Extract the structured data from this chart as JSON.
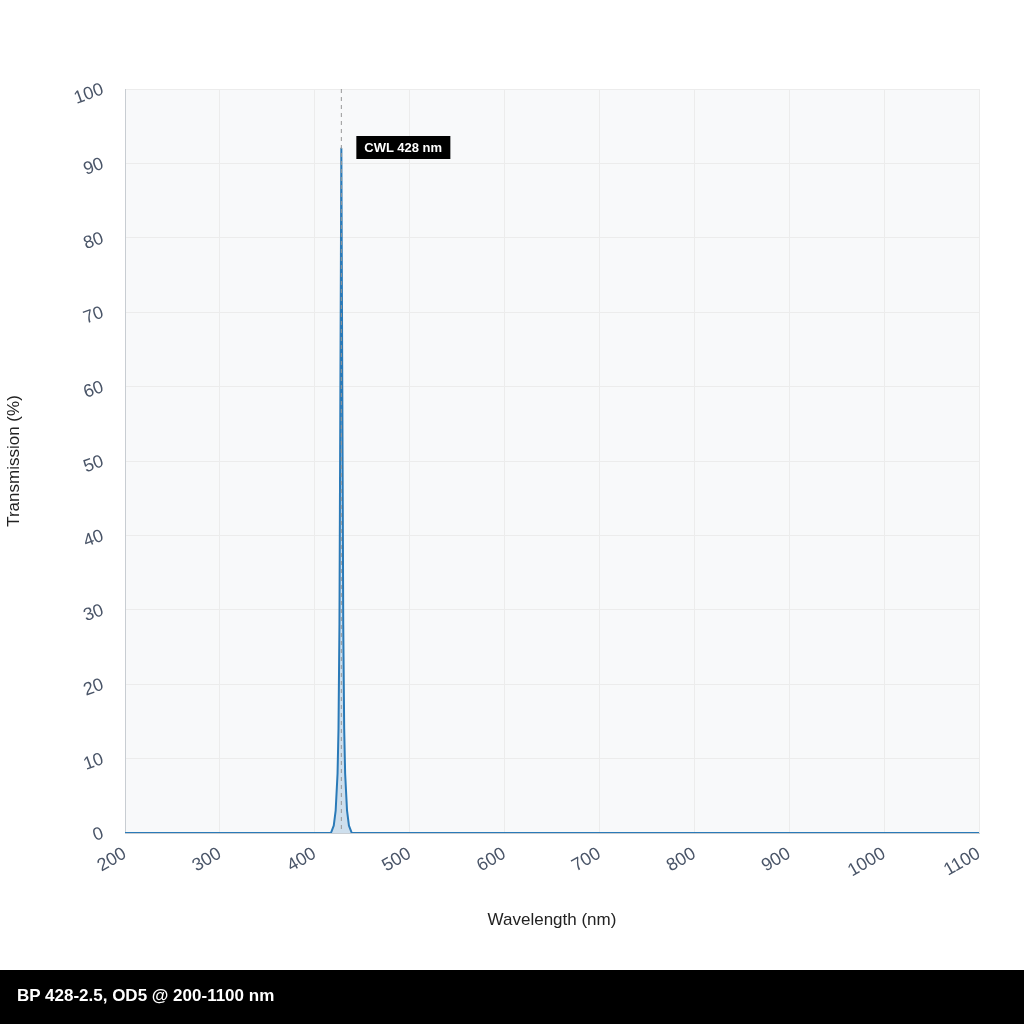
{
  "chart_data": {
    "type": "area",
    "xlabel": "Wavelength (nm)",
    "ylabel": "Transmission (%)",
    "x": [
      200,
      417,
      420,
      422,
      424,
      425,
      426,
      427,
      428,
      429,
      430,
      431,
      432,
      434,
      436,
      439,
      1100
    ],
    "series": [
      {
        "color": "#2a7ab8",
        "values": [
          0,
          0,
          1,
          3,
          8,
          14,
          28,
          60,
          92,
          60,
          28,
          14,
          8,
          3,
          1,
          0,
          0
        ]
      }
    ],
    "xlim": [
      200,
      1100
    ],
    "xticks": [
      200,
      300,
      400,
      500,
      600,
      700,
      800,
      900,
      1000,
      1100
    ],
    "ylim": [
      0,
      100
    ],
    "yticks": [
      0,
      10,
      20,
      30,
      40,
      50,
      60,
      70,
      80,
      90,
      100
    ],
    "grid": true,
    "ref_lines": [
      {
        "axis": "x",
        "value": 428,
        "label": "CWL 428 nm",
        "color": "#999999",
        "line_style": "dashed"
      }
    ],
    "annotations": [
      "BP 428-2.5, OD5 @ 200-1100 nm"
    ]
  }
}
